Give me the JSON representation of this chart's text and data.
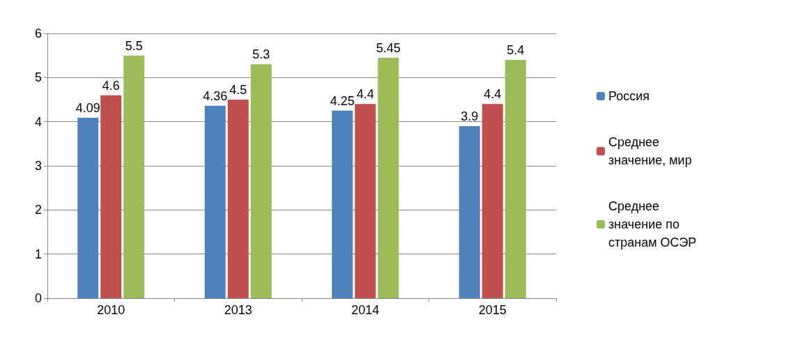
{
  "chart_data": {
    "type": "bar",
    "categories": [
      "2010",
      "2013",
      "2014",
      "2015"
    ],
    "series": [
      {
        "name": "Россия",
        "color": "#4f81bd",
        "values": [
          4.09,
          4.36,
          4.25,
          3.9
        ]
      },
      {
        "name": "Среднее значение, мир",
        "color": "#c0504d",
        "values": [
          4.6,
          4.5,
          4.4,
          4.4
        ]
      },
      {
        "name": "Среднее значение по странам ОСЭР",
        "color": "#9bbb59",
        "values": [
          5.5,
          5.3,
          5.45,
          5.4
        ]
      }
    ],
    "ylim": [
      0,
      6
    ],
    "yticks": [
      0,
      1,
      2,
      3,
      4,
      5,
      6
    ],
    "grid": "y",
    "legend": "right",
    "data_labels": true
  }
}
